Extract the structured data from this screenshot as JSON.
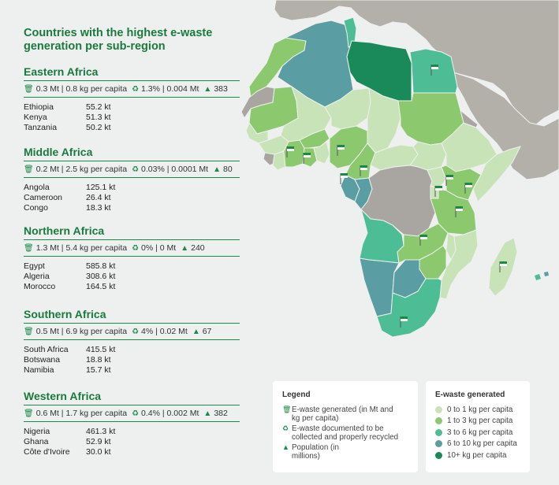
{
  "title": "Countries with the highest e-waste generation per sub-region",
  "colors": {
    "scale_0_1": "#c9e3b8",
    "scale_1_3": "#8cc96e",
    "scale_3_6": "#4dbd96",
    "scale_6_10": "#5a9ea3",
    "scale_10_plus": "#1a8a5a",
    "non_africa": "#b3b0aa",
    "no_data": "#a9a6a1",
    "ocean": "#eef0ef",
    "accent": "#1a7a3e"
  },
  "icons": {
    "generated": "trash-bin-icon",
    "documented": "recycle-icon",
    "population": "person-icon"
  },
  "regions": [
    {
      "name": "Eastern Africa",
      "generated": "0.3 Mt | 0.8 kg per capita",
      "documented": "1.3% | 0.004 Mt",
      "population": "383",
      "countries": [
        {
          "name": "Ethiopia",
          "value": "55.2 kt"
        },
        {
          "name": "Kenya",
          "value": "51.3 kt"
        },
        {
          "name": "Tanzania",
          "value": "50.2 kt"
        }
      ]
    },
    {
      "name": "Middle Africa",
      "generated": "0.2 Mt | 2.5 kg per capita",
      "documented": "0.03% | 0.0001 Mt",
      "population": "80",
      "countries": [
        {
          "name": "Angola",
          "value": "125.1 kt"
        },
        {
          "name": "Cameroon",
          "value": "26.4 kt"
        },
        {
          "name": "Congo",
          "value": "18.3 kt"
        }
      ]
    },
    {
      "name": "Northern Africa",
      "generated": "1.3 Mt | 5.4 kg per capita",
      "documented": "0% | 0 Mt",
      "population": "240",
      "countries": [
        {
          "name": "Egypt",
          "value": "585.8 kt"
        },
        {
          "name": "Algeria",
          "value": "308.6 kt"
        },
        {
          "name": "Morocco",
          "value": "164.5 kt"
        }
      ]
    },
    {
      "name": "Southern Africa",
      "generated": "0.5 Mt | 6.9 kg per capita",
      "documented": "4% | 0.02 Mt",
      "population": "67",
      "countries": [
        {
          "name": "South Africa",
          "value": "415.5 kt"
        },
        {
          "name": "Botswana",
          "value": "18.8 kt"
        },
        {
          "name": "Namibia",
          "value": "15.7 kt"
        }
      ]
    },
    {
      "name": "Western Africa",
      "generated": "0.6 Mt | 1.7 kg per capita",
      "documented": "0.4% | 0.002 Mt",
      "population": "382",
      "countries": [
        {
          "name": "Nigeria",
          "value": "461.3 kt"
        },
        {
          "name": "Ghana",
          "value": "52.9 kt"
        },
        {
          "name": "Côte d'Ivoire",
          "value": "30.0 kt"
        }
      ]
    }
  ],
  "legend": {
    "title": "Legend",
    "items": [
      {
        "icon": "trash-bin-icon",
        "text": "E-waste generated (in Mt and kg per capita)"
      },
      {
        "icon": "recycle-icon",
        "text": "E-waste documented to be collected and properly recycled"
      },
      {
        "icon": "person-icon",
        "text": "Population (in millions)"
      }
    ]
  },
  "scale": {
    "title": "E-waste generated",
    "items": [
      {
        "label": "0 to 1 kg per capita",
        "color": "#c9e3b8"
      },
      {
        "label": "1 to 3 kg per capita",
        "color": "#8cc96e"
      },
      {
        "label": "3 to 6 kg per capita",
        "color": "#4dbd96"
      },
      {
        "label": "6 to 10 kg per capita",
        "color": "#5a9ea3"
      },
      {
        "label": "10+ kg per capita",
        "color": "#1a8a5a"
      }
    ]
  }
}
